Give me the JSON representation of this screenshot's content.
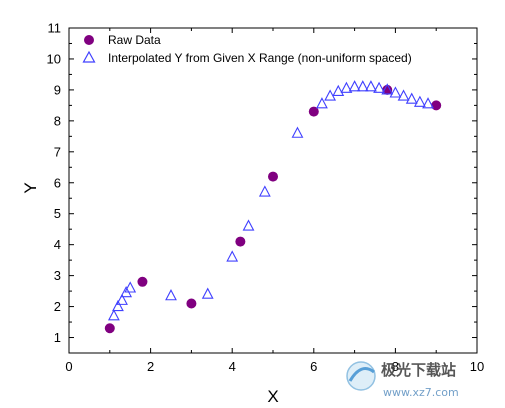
{
  "chart_data": {
    "type": "scatter",
    "title": "",
    "xlabel": "X",
    "ylabel": "Y",
    "xlim": [
      0,
      10
    ],
    "ylim": [
      0.5,
      11
    ],
    "x_ticks": [
      0,
      2,
      4,
      6,
      8,
      10
    ],
    "y_ticks": [
      1,
      2,
      3,
      4,
      5,
      6,
      7,
      8,
      9,
      10,
      11
    ],
    "grid": false,
    "legend_position": "top-left",
    "series": [
      {
        "name": "Raw Data",
        "marker": "filled-circle",
        "color": "#800080",
        "x": [
          1.0,
          1.8,
          3.0,
          4.2,
          5.0,
          6.0,
          7.8,
          9.0
        ],
        "y": [
          1.3,
          2.8,
          2.1,
          4.1,
          6.2,
          8.3,
          9.0,
          8.5
        ]
      },
      {
        "name": "Interpolated Y from Given X Range (non-uniform spaced)",
        "marker": "open-triangle",
        "color": "#4040ff",
        "x": [
          1.1,
          1.2,
          1.3,
          1.4,
          1.5,
          2.5,
          3.4,
          4.0,
          4.4,
          4.8,
          5.6,
          6.2,
          6.4,
          6.6,
          6.8,
          7.0,
          7.2,
          7.4,
          7.6,
          7.8,
          8.0,
          8.2,
          8.4,
          8.6,
          8.8
        ],
        "y": [
          1.7,
          2.0,
          2.2,
          2.45,
          2.6,
          2.35,
          2.4,
          3.6,
          4.6,
          5.7,
          7.6,
          8.55,
          8.8,
          8.95,
          9.05,
          9.1,
          9.1,
          9.1,
          9.05,
          9.0,
          8.9,
          8.8,
          8.7,
          8.6,
          8.55
        ]
      }
    ]
  },
  "watermark": {
    "text": "极光下载站",
    "url": "www.xz7.com"
  }
}
